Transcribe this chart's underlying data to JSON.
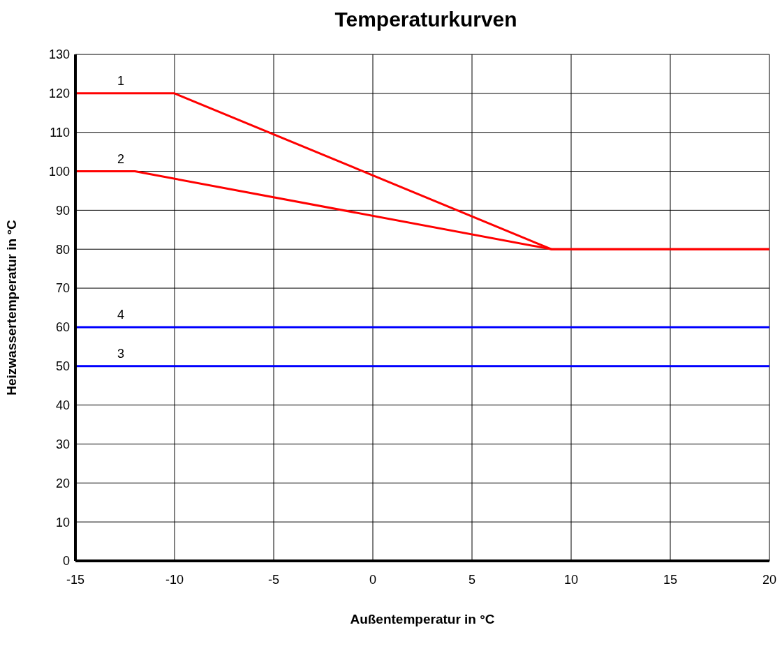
{
  "chart_data": {
    "type": "line",
    "title": "Temperaturkurven",
    "xlabel": "Außentemperatur in °C",
    "ylabel": "Heizwassertemperatur in °C",
    "series": [
      {
        "name": "1",
        "color": "#ff0000",
        "x": [
          -15,
          -10,
          9,
          20
        ],
        "values": [
          120,
          120,
          80,
          80
        ]
      },
      {
        "name": "2",
        "color": "#ff0000",
        "x": [
          -15,
          -12,
          9,
          20
        ],
        "values": [
          100,
          100,
          80,
          80
        ]
      },
      {
        "name": "3",
        "color": "#0000ff",
        "x": [
          -15,
          20
        ],
        "values": [
          50,
          50
        ]
      },
      {
        "name": "4",
        "color": "#0000ff",
        "x": [
          -15,
          20
        ],
        "values": [
          60,
          60
        ]
      }
    ],
    "xlim": [
      -15,
      20
    ],
    "xticks": [
      -15,
      -10,
      -5,
      0,
      5,
      10,
      15,
      20
    ],
    "ylim": [
      0,
      130
    ],
    "yticks": [
      0,
      10,
      20,
      30,
      40,
      50,
      60,
      70,
      80,
      90,
      100,
      110,
      120,
      130
    ],
    "grid": true,
    "legend": false,
    "marker": "none",
    "line_style": "solid"
  }
}
